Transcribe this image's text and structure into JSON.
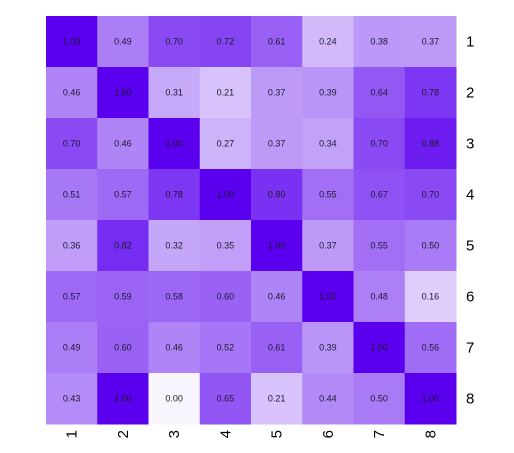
{
  "chart_data": {
    "type": "heatmap",
    "title": "",
    "xlabel": "",
    "ylabel": "",
    "row_labels": [
      "1",
      "2",
      "3",
      "4",
      "5",
      "6",
      "7",
      "8"
    ],
    "col_labels": [
      "1",
      "2",
      "3",
      "4",
      "5",
      "6",
      "7",
      "8"
    ],
    "value_range": [
      0,
      1
    ],
    "colors": {
      "low": "#f8f5fe",
      "high": "#5a00ee"
    },
    "values": [
      [
        1.0,
        0.49,
        0.7,
        0.72,
        0.61,
        0.24,
        0.38,
        0.37
      ],
      [
        0.46,
        1.0,
        0.31,
        0.21,
        0.37,
        0.39,
        0.64,
        0.78
      ],
      [
        0.7,
        0.46,
        1.0,
        0.27,
        0.37,
        0.34,
        0.7,
        0.88
      ],
      [
        0.51,
        0.57,
        0.78,
        1.0,
        0.8,
        0.55,
        0.67,
        0.7
      ],
      [
        0.36,
        0.82,
        0.32,
        0.35,
        1.0,
        0.37,
        0.55,
        0.5
      ],
      [
        0.57,
        0.59,
        0.58,
        0.6,
        0.46,
        1.0,
        0.48,
        0.16
      ],
      [
        0.49,
        0.6,
        0.46,
        0.52,
        0.61,
        0.39,
        1.0,
        0.56
      ],
      [
        0.43,
        1.0,
        0.0,
        0.65,
        0.21,
        0.44,
        0.5,
        1.0
      ]
    ],
    "cell_labels": [
      [
        "1.00",
        "0.49",
        "0.70",
        "0.72",
        "0.61",
        "0.24",
        "0.38",
        "0.37"
      ],
      [
        "0.46",
        "1.00",
        "0.31",
        "0.21",
        "0.37",
        "0.39",
        "0.64",
        "0.78"
      ],
      [
        "0.70",
        "0.46",
        "1.00",
        "0.27",
        "0.37",
        "0.34",
        "0.70",
        "0.88"
      ],
      [
        "0.51",
        "0.57",
        "0.78",
        "1.00",
        "0.80",
        "0.55",
        "0.67",
        "0.70"
      ],
      [
        "0.36",
        "0.82",
        "0.32",
        "0.35",
        "1.00",
        "0.37",
        "0.55",
        "0.50"
      ],
      [
        "0.57",
        "0.59",
        "0.58",
        "0.60",
        "0.46",
        "1.00",
        "0.48",
        "0.16"
      ],
      [
        "0.49",
        "0.60",
        "0.46",
        "0.52",
        "0.61",
        "0.39",
        "1.00",
        "0.56"
      ],
      [
        "0.43",
        "1.00",
        "0.00",
        "0.65",
        "0.21",
        "0.44",
        "0.50",
        "1.00"
      ]
    ],
    "grid": false,
    "row_labels_side": "right",
    "col_labels_orientation": "vertical"
  }
}
